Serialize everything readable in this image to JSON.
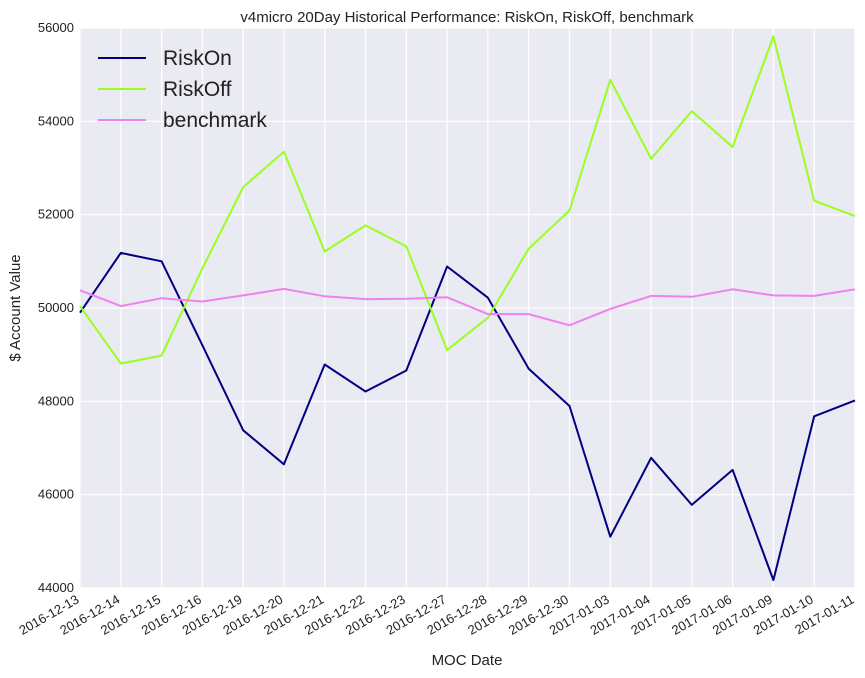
{
  "chart_data": {
    "type": "line",
    "title": "v4micro 20Day Historical Performance: RiskOn, RiskOff, benchmark",
    "xlabel": "MOC Date",
    "ylabel": "$ Account Value",
    "ylim": [
      44000,
      56000
    ],
    "yticks": [
      44000,
      46000,
      48000,
      50000,
      52000,
      54000,
      56000
    ],
    "grid": true,
    "legend_position": "top-left",
    "background": "#eaeaf2",
    "x": [
      "2016-12-13",
      "2016-12-14",
      "2016-12-15",
      "2016-12-16",
      "2016-12-19",
      "2016-12-20",
      "2016-12-21",
      "2016-12-22",
      "2016-12-23",
      "2016-12-27",
      "2016-12-28",
      "2016-12-29",
      "2016-12-30",
      "2017-01-03",
      "2017-01-04",
      "2017-01-05",
      "2017-01-06",
      "2017-01-09",
      "2017-01-10",
      "2017-01-11"
    ],
    "series": [
      {
        "name": "RiskOn",
        "color": "#000080",
        "values": [
          49900,
          51180,
          51000,
          49200,
          47380,
          46650,
          48790,
          48210,
          48660,
          50890,
          50220,
          48700,
          47900,
          45100,
          46790,
          45780,
          46530,
          44170,
          47680,
          48020
        ]
      },
      {
        "name": "RiskOff",
        "color": "#9aff20",
        "values": [
          50040,
          48810,
          48980,
          50850,
          52590,
          53350,
          51210,
          51770,
          51320,
          49100,
          49790,
          51270,
          52090,
          54890,
          53200,
          54220,
          53450,
          55820,
          52300,
          51970
        ]
      },
      {
        "name": "benchmark",
        "color": "#ee82ee",
        "values": [
          50380,
          50040,
          50210,
          50140,
          50270,
          50410,
          50250,
          50190,
          50200,
          50230,
          49870,
          49870,
          49630,
          49980,
          50260,
          50240,
          50400,
          50270,
          50260,
          50400
        ]
      }
    ]
  }
}
